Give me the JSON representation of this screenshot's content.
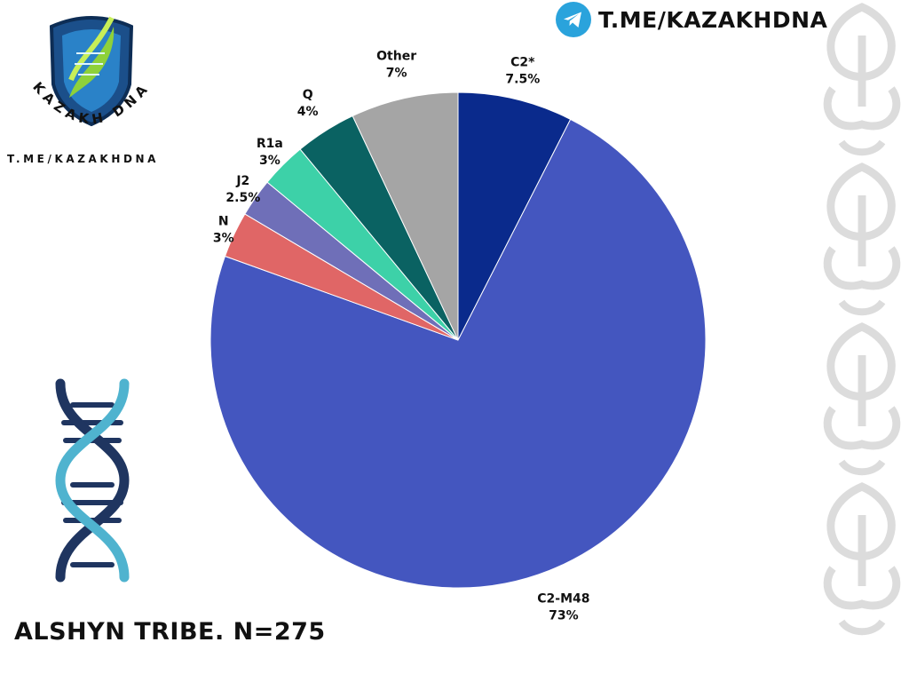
{
  "branding": {
    "logo_name": "KAZAKH DNA",
    "logo_link": "T.ME/KAZAKHDNA",
    "telegram_link": "T.ME/KAZAKHDNA",
    "telegram_icon": "telegram-icon",
    "accent_color": "#2aa3dc"
  },
  "title": "ALSHYN TRIBE. N=275",
  "chart_data": {
    "type": "pie",
    "title": "ALSHYN TRIBE. N=275",
    "start_angle_deg": 0,
    "direction": "clockwise",
    "slices": [
      {
        "label": "C2*",
        "value": 7.5,
        "value_label": "7.5%",
        "color": "#0a2a8c"
      },
      {
        "label": "C2-M48",
        "value": 73,
        "value_label": "73%",
        "color": "#4456bf"
      },
      {
        "label": "N",
        "value": 3,
        "value_label": "3%",
        "color": "#e06666"
      },
      {
        "label": "J2",
        "value": 2.5,
        "value_label": "2.5%",
        "color": "#6f6fb8"
      },
      {
        "label": "R1a",
        "value": 3,
        "value_label": "3%",
        "color": "#3dd1a8"
      },
      {
        "label": "Q",
        "value": 4,
        "value_label": "4%",
        "color": "#0a6262"
      },
      {
        "label": "Other",
        "value": 7,
        "value_label": "7%",
        "color": "#a5a5a5"
      }
    ]
  }
}
